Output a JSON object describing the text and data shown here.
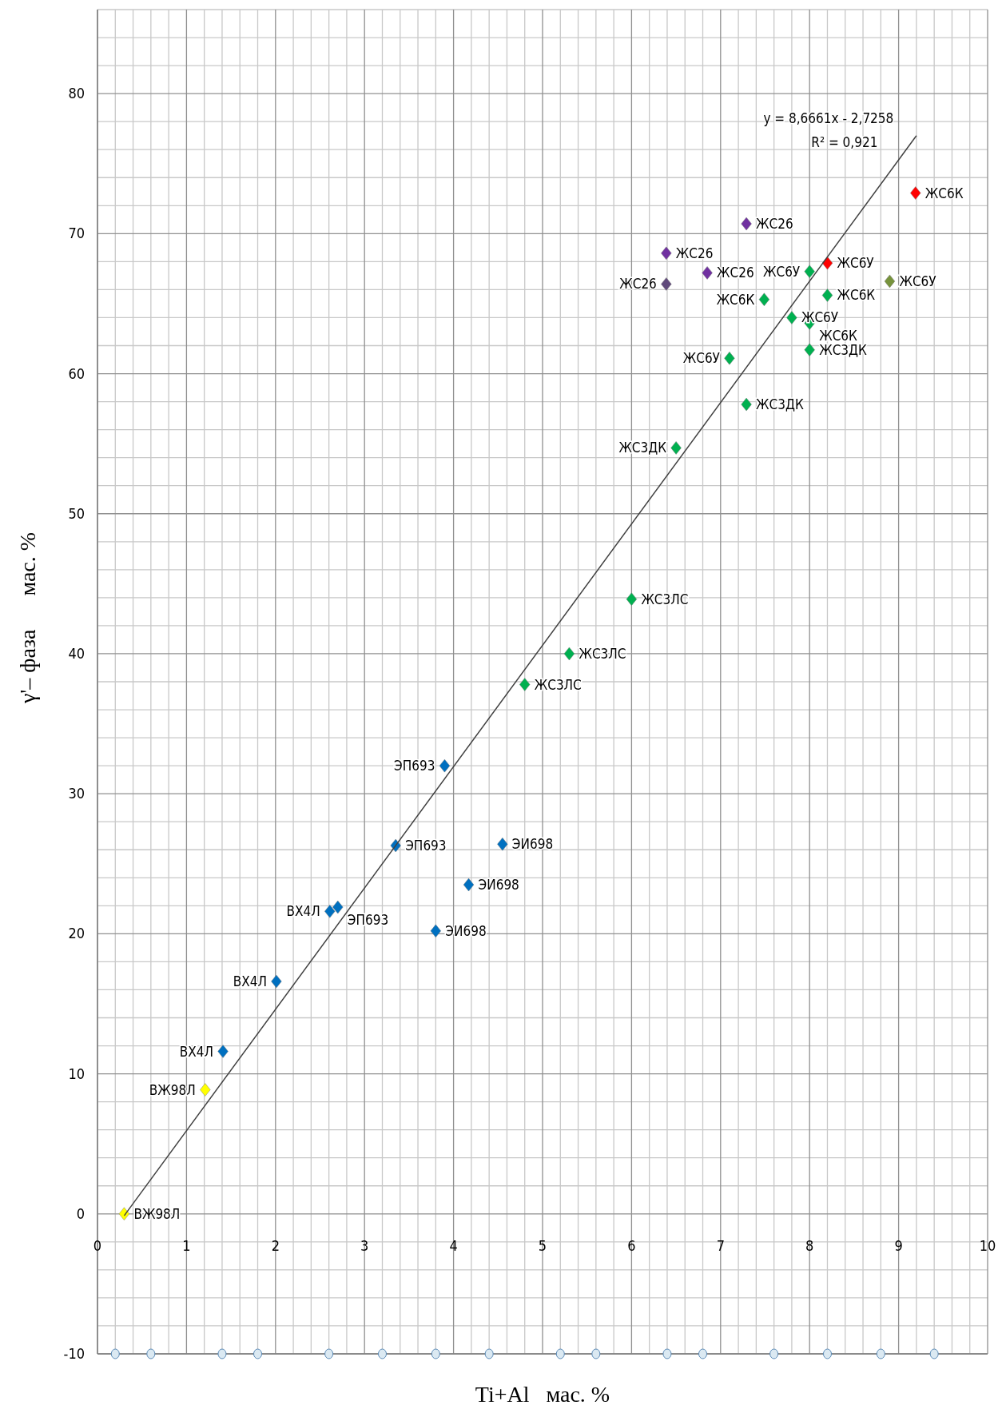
{
  "chart_data": {
    "type": "scatter",
    "xlabel": "Ti+Al   мас. %",
    "ylabel": "γ'– фаза      мас. %",
    "xlim": [
      0,
      10
    ],
    "xticks": [
      0,
      1,
      2,
      3,
      4,
      5,
      6,
      7,
      8,
      9,
      10
    ],
    "ylim": [
      -10,
      86
    ],
    "yticks": [
      -10,
      0,
      10,
      20,
      30,
      40,
      50,
      60,
      70,
      80
    ],
    "grid": true,
    "marker": "diamond",
    "series": [
      {
        "color": "#ffff00",
        "x": [
          0.3,
          1.21
        ],
        "values": [
          0,
          8.86
        ]
      },
      {
        "color": "#0070c0",
        "x": [
          1.41,
          2.01,
          2.61,
          2.7,
          3.35,
          3.9,
          3.8,
          4.17,
          4.55
        ],
        "values": [
          11.6,
          16.6,
          21.6,
          21.9,
          26.3,
          32,
          20.2,
          23.5,
          26.4
        ]
      },
      {
        "color": "#00b050",
        "x": [
          4.8,
          5.3,
          6.0,
          6.5,
          7.29,
          7.1,
          7.49,
          7.8,
          8.0,
          8.0,
          8.2,
          8.0
        ],
        "values": [
          37.8,
          40,
          43.9,
          54.7,
          57.8,
          61.1,
          65.3,
          64.0,
          63.6,
          61.7,
          65.6,
          67.3
        ]
      },
      {
        "color": "#7030a0",
        "x": [
          6.39,
          6.85,
          7.29
        ],
        "values": [
          68.6,
          67.2,
          70.7
        ]
      },
      {
        "color": "#604a7b",
        "x": [
          6.39
        ],
        "values": [
          66.4
        ]
      },
      {
        "color": "#ff0000",
        "x": [
          8.2,
          9.19
        ],
        "values": [
          67.9,
          72.9
        ]
      },
      {
        "color": "#77933c",
        "x": [
          8.9
        ],
        "values": [
          66.6
        ]
      },
      {
        "color": "#dbe9f2",
        "marker": "circle",
        "x": [
          0.2,
          0.6,
          1.4,
          1.8,
          2.6,
          3.2,
          3.8,
          4.4,
          5.2,
          5.6,
          6.4,
          6.8,
          7.6,
          8.2,
          8.8,
          9.4
        ],
        "values": [
          -10,
          -10,
          -10,
          -10,
          -10,
          -10,
          -10,
          -10,
          -10,
          -10,
          -10,
          -10,
          -10,
          -10,
          -10,
          -10
        ]
      },
      {
        "type": "line",
        "color": "#404040",
        "marker": "none",
        "x": [
          0.3,
          9.2
        ],
        "values": [
          -0.13,
          77.0
        ]
      }
    ],
    "annotations": [
      "y = 8,6661x - 2,7258",
      "R² = 0,921",
      {
        "text": "ВЖ98Л",
        "x": 0.3,
        "y": 0
      },
      {
        "text": "ВЖ98Л",
        "x": 1.21,
        "y": 8.86
      },
      {
        "text": "ВХ4Л",
        "x": 1.41,
        "y": 11.6
      },
      {
        "text": "ВХ4Л",
        "x": 2.01,
        "y": 16.6
      },
      {
        "text": "ВХ4Л",
        "x": 2.61,
        "y": 21.6
      },
      {
        "text": "ЭП693",
        "x": 2.7,
        "y": 21.9
      },
      {
        "text": "ЭП693",
        "x": 3.35,
        "y": 26.3
      },
      {
        "text": "ЭП693",
        "x": 3.9,
        "y": 32
      },
      {
        "text": "ЭИ698",
        "x": 3.8,
        "y": 20.2
      },
      {
        "text": "ЭИ698",
        "x": 4.17,
        "y": 23.5
      },
      {
        "text": "ЭИ698",
        "x": 4.55,
        "y": 26.4
      },
      {
        "text": "ЖС3ЛС",
        "x": 4.8,
        "y": 37.8
      },
      {
        "text": "ЖС3ЛС",
        "x": 5.3,
        "y": 40
      },
      {
        "text": "ЖС3ЛС",
        "x": 6.0,
        "y": 43.9
      },
      {
        "text": "ЖС3ДК",
        "x": 6.5,
        "y": 54.7
      },
      {
        "text": "ЖС3ДК",
        "x": 7.29,
        "y": 57.8
      },
      {
        "text": "ЖС6У",
        "x": 7.1,
        "y": 61.1
      },
      {
        "text": "ЖС6У",
        "x": 7.8,
        "y": 64.0
      },
      {
        "text": "ЖС3ДК",
        "x": 8.0,
        "y": 61.7
      },
      {
        "text": "ЖС6К",
        "x": 8.0,
        "y": 63.6
      },
      {
        "text": "ЖС6К",
        "x": 7.49,
        "y": 65.3
      },
      {
        "text": "ЖС6К",
        "x": 8.2,
        "y": 65.6
      },
      {
        "text": "ЖС6У",
        "x": 8.0,
        "y": 67.3
      },
      {
        "text": "ЖС6У",
        "x": 8.2,
        "y": 67.9
      },
      {
        "text": "ЖС6У",
        "x": 8.9,
        "y": 66.6
      },
      {
        "text": "ЖС6К",
        "x": 9.19,
        "y": 72.9
      },
      {
        "text": "ЖС26",
        "x": 6.39,
        "y": 68.6
      },
      {
        "text": "ЖС26",
        "x": 6.39,
        "y": 66.4
      },
      {
        "text": "ЖС26",
        "x": 6.85,
        "y": 67.2
      },
      {
        "text": "ЖС26",
        "x": 7.29,
        "y": 70.7
      }
    ]
  }
}
